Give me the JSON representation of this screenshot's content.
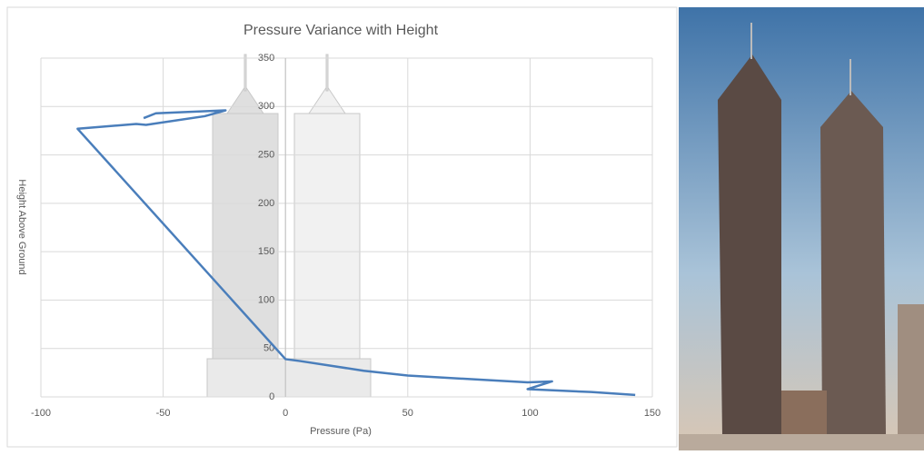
{
  "chart_data": {
    "type": "line",
    "title": "Pressure Variance with Height",
    "x_label": "Pressure (Pa)",
    "y_label": "Height Above Ground",
    "x": [
      -58,
      -53,
      -24.5,
      -33,
      -57,
      -61,
      -85,
      0,
      6,
      32,
      50,
      99,
      109,
      99,
      125,
      143
    ],
    "values": [
      288,
      293,
      296,
      290,
      281,
      282,
      277,
      39,
      37,
      27,
      22,
      15,
      16,
      8,
      5,
      2
    ],
    "color": "#4a7ebb",
    "xlim": [
      -100,
      150
    ],
    "xticks": [
      -100,
      -50,
      0,
      50,
      100,
      150
    ],
    "ylim": [
      0,
      350
    ],
    "yticks": [
      0,
      50,
      100,
      150,
      200,
      250,
      300,
      350
    ],
    "grid": true
  }
}
